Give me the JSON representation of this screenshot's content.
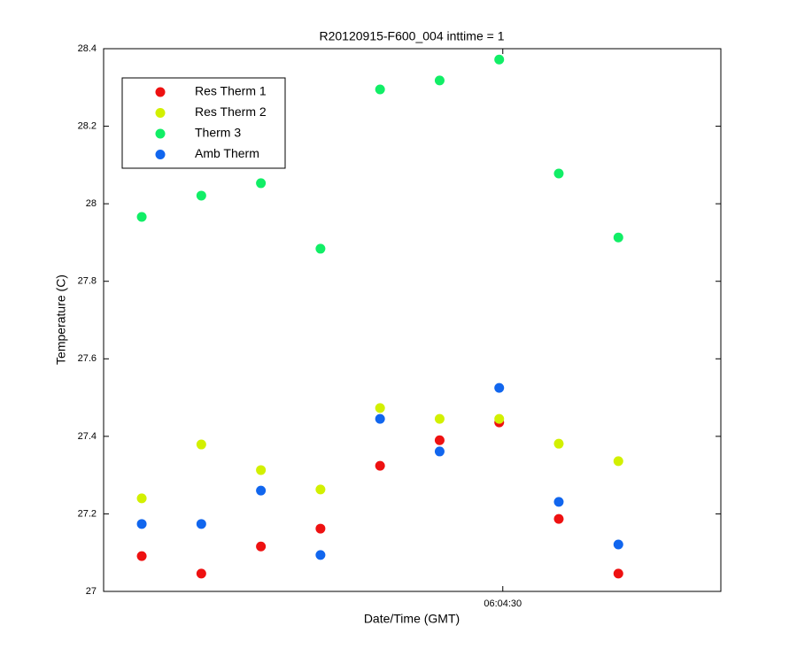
{
  "chart_data": {
    "type": "scatter",
    "title": "R20120915-F600_004 inttime = 1",
    "xlabel": "Date/Time (GMT)",
    "ylabel": "Temperature (C)",
    "x": [
      21809.4,
      21819.4,
      21829.4,
      21839.4,
      21849.4,
      21859.4,
      21869.4,
      21879.4,
      21889.4
    ],
    "xlim": [
      21803,
      21906.6
    ],
    "xticks": [
      {
        "value": 21870,
        "label": "06:04:30"
      }
    ],
    "ylim": [
      27,
      28.4
    ],
    "yticks": [
      27,
      27.2,
      27.4,
      27.6,
      27.8,
      28,
      28.2,
      28.4
    ],
    "grid": false,
    "legend": "upper left",
    "series": [
      {
        "name": "Res Therm 1",
        "color": "#ee1111",
        "values": [
          27.091,
          27.046,
          27.116,
          27.162,
          27.324,
          27.39,
          27.436,
          27.187,
          27.046
        ]
      },
      {
        "name": "Res Therm 2",
        "color": "#d2f000",
        "values": [
          27.24,
          27.379,
          27.313,
          27.263,
          27.473,
          27.445,
          27.445,
          27.381,
          27.336
        ]
      },
      {
        "name": "Therm 3",
        "color": "#11ee66",
        "values": [
          27.966,
          28.021,
          28.053,
          27.884,
          28.295,
          28.318,
          28.372,
          28.078,
          27.913
        ]
      },
      {
        "name": "Amb Therm",
        "color": "#1166ee",
        "values": [
          27.174,
          27.174,
          27.26,
          27.094,
          27.445,
          27.361,
          27.525,
          27.231,
          27.121
        ]
      }
    ]
  }
}
